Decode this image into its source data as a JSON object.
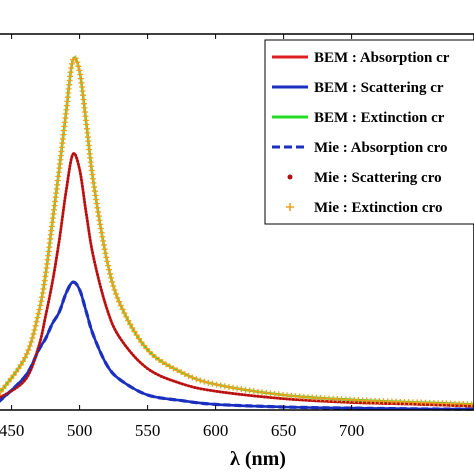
{
  "chart_data": {
    "type": "line",
    "xlabel": "λ (nm)",
    "ylabel": "",
    "title": "",
    "xlim": [
      440,
      790
    ],
    "ylim": [
      0,
      1.0
    ],
    "xticks": [
      450,
      500,
      550,
      600,
      650,
      700
    ],
    "xtick_labels": [
      "450",
      "500",
      "550",
      "600",
      "650",
      "700"
    ],
    "grid": false,
    "legend_position": "top-right",
    "x": [
      440,
      460,
      470,
      475,
      480,
      485,
      490,
      495,
      500,
      505,
      510,
      520,
      530,
      550,
      575,
      600,
      650,
      700,
      750,
      790
    ],
    "series": [
      {
        "name": "BEM : Absorption cr",
        "color": "#e02020",
        "style": "solid",
        "values": [
          0.03,
          0.08,
          0.17,
          0.25,
          0.34,
          0.45,
          0.58,
          0.68,
          0.64,
          0.52,
          0.41,
          0.27,
          0.19,
          0.11,
          0.07,
          0.05,
          0.03,
          0.02,
          0.015,
          0.01
        ]
      },
      {
        "name": "BEM : Scattering cr",
        "color": "#1a2fbf",
        "style": "solid",
        "values": [
          0.02,
          0.09,
          0.16,
          0.19,
          0.23,
          0.26,
          0.31,
          0.34,
          0.32,
          0.26,
          0.2,
          0.12,
          0.08,
          0.04,
          0.025,
          0.015,
          0.008,
          0.005,
          0.003,
          0.002
        ]
      },
      {
        "name": "BEM : Extinction cr",
        "color": "#22dd22",
        "style": "solid",
        "values": [
          0.04,
          0.14,
          0.26,
          0.36,
          0.5,
          0.64,
          0.79,
          0.93,
          0.9,
          0.76,
          0.61,
          0.4,
          0.28,
          0.16,
          0.1,
          0.068,
          0.04,
          0.027,
          0.02,
          0.015
        ]
      },
      {
        "name": "Mie : Absorption cro",
        "color": "#1a2fbf",
        "style": "dashed",
        "values": [
          0.02,
          0.09,
          0.16,
          0.19,
          0.23,
          0.26,
          0.31,
          0.34,
          0.32,
          0.26,
          0.2,
          0.12,
          0.08,
          0.04,
          0.025,
          0.015,
          0.008,
          0.005,
          0.003,
          0.002
        ]
      },
      {
        "name": "Mie : Scattering cro",
        "color": "#b01010",
        "style": "markers-dot",
        "values": [
          0.03,
          0.08,
          0.17,
          0.25,
          0.34,
          0.45,
          0.58,
          0.68,
          0.64,
          0.52,
          0.41,
          0.27,
          0.19,
          0.11,
          0.07,
          0.05,
          0.03,
          0.02,
          0.015,
          0.01
        ]
      },
      {
        "name": "Mie : Extinction cro",
        "color": "#f0a020",
        "style": "markers-star",
        "values": [
          0.04,
          0.14,
          0.26,
          0.36,
          0.5,
          0.64,
          0.79,
          0.93,
          0.9,
          0.76,
          0.61,
          0.4,
          0.28,
          0.16,
          0.1,
          0.068,
          0.04,
          0.027,
          0.02,
          0.015
        ]
      }
    ]
  }
}
